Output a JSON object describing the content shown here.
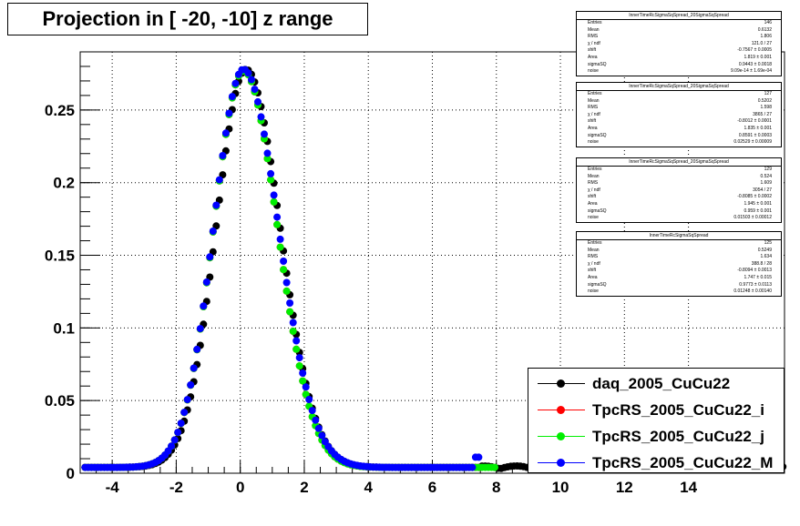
{
  "title": "Projection in [ -20, -10] z range",
  "colors": {
    "daq": "#000000",
    "tpc_i": "#ff0000",
    "tpc_j": "#00ee00",
    "tpc_m": "#0000ff"
  },
  "chart_data": {
    "type": "scatter",
    "title": "Projection in [ -20, -10] z range",
    "xlabel": "",
    "ylabel": "",
    "xlim": [
      -5,
      17
    ],
    "ylim": [
      0,
      0.29
    ],
    "x_ticks": [
      -4,
      -2,
      0,
      2,
      4,
      6,
      8,
      10,
      12,
      14
    ],
    "y_ticks": [
      0,
      0.05,
      0.1,
      0.15,
      0.2,
      0.25
    ],
    "y_tick_labels": [
      "0",
      "0.05",
      "0.1",
      "0.15",
      "0.2",
      "0.25"
    ],
    "grid": true,
    "legend_position": "bottom-right",
    "series": [
      {
        "name": "daq_2005_CuCu22",
        "color": "#000000",
        "mean": 0.18,
        "sigma_left": 0.93,
        "sigma_right": 1.06,
        "peak": 0.274,
        "x_max": 17
      },
      {
        "name": "TpcRS_2005_CuCu22_i",
        "color": "#ff0000",
        "mean": 0.1,
        "sigma_left": 0.93,
        "sigma_right": 1.06,
        "peak": 0.273,
        "x_max": 7.5
      },
      {
        "name": "TpcRS_2005_CuCu22_j",
        "color": "#00ee00",
        "mean": 0.1,
        "sigma_left": 0.93,
        "sigma_right": 1.06,
        "peak": 0.273,
        "x_max": 8.0
      },
      {
        "name": "TpcRS_2005_CuCu22_M",
        "color": "#0000ff",
        "mean": 0.1,
        "sigma_left": 0.93,
        "sigma_right": 1.09,
        "peak": 0.274,
        "x_max": 7.5
      }
    ]
  },
  "stat_boxes": [
    {
      "title": "InnerTimeRcSigmaSqSpread_20SigmaSqSpread",
      "rows": [
        [
          "Entries",
          "146"
        ],
        [
          "Mean",
          "0.6132"
        ],
        [
          "RMS",
          "1.806"
        ],
        [
          "χ  / ndf",
          "121.0 / 27"
        ],
        [
          "shift",
          "-0.7567 ± 0.0005"
        ],
        [
          "Area",
          "1.819 ± 0.001"
        ],
        [
          "sigmaSQ",
          "0.9443 ± 0.0018"
        ],
        [
          "noise",
          "9.09e-14 ± 1.69e-04"
        ]
      ]
    },
    {
      "title": "InnerTimeRcSigmaSqSpread_20SigmaSqSpread",
      "rows": [
        [
          "Entries",
          "127"
        ],
        [
          "Mean",
          "0.5202"
        ],
        [
          "RMS",
          "1.598"
        ],
        [
          "χ  / ndf",
          "3865 / 27"
        ],
        [
          "shift",
          "-0.8012 ± 0.0001"
        ],
        [
          "Area",
          "1.835 ± 0.001"
        ],
        [
          "sigmaSQ",
          "0.8591 ± 0.0003"
        ],
        [
          "noise",
          "0.02529 ± 0.00009"
        ]
      ]
    },
    {
      "title": "InnerTimeRcSigmaSqSpread_20SigmaSqSpread",
      "rows": [
        [
          "Entries",
          "129"
        ],
        [
          "Mean",
          "0.524"
        ],
        [
          "RMS",
          "1.609"
        ],
        [
          "χ  / ndf",
          "3054 / 27"
        ],
        [
          "shift",
          "-0.8085 ± 0.0002"
        ],
        [
          "Area",
          "1.945 ± 0.001"
        ],
        [
          "sigmaSQ",
          "0.959 ± 0.001"
        ],
        [
          "noise",
          "0.01503 ± 0.00012"
        ]
      ]
    },
    {
      "title": "InnerTimeRcSigmaSqSpread",
      "rows": [
        [
          "Entries",
          "125"
        ],
        [
          "Mean",
          "0.5249"
        ],
        [
          "RMS",
          "1.634"
        ],
        [
          "χ  / ndf",
          "388.8 / 28"
        ],
        [
          "shift",
          "-0.8094 ± 0.0013"
        ],
        [
          "Area",
          "1.747 ± 0.015"
        ],
        [
          "sigmaSQ",
          "0.9773 ± 0.0113"
        ],
        [
          "noise",
          "0.01248 ± 0.00140"
        ]
      ]
    }
  ],
  "legend": [
    {
      "label": "daq_2005_CuCu22",
      "color": "#000000"
    },
    {
      "label": "TpcRS_2005_CuCu22_i",
      "color": "#ff0000"
    },
    {
      "label": "TpcRS_2005_CuCu22_j",
      "color": "#00ee00"
    },
    {
      "label": "TpcRS_2005_CuCu22_M",
      "color": "#0000ff"
    }
  ]
}
